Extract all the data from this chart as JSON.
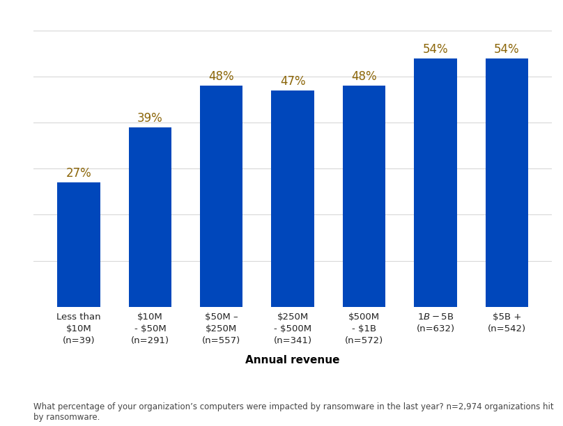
{
  "categories": [
    "Less than\n$10M\n(n=39)",
    "$10M\n- $50M\n(n=291)",
    "$50M –\n$250M\n(n=557)",
    "$250M\n- $500M\n(n=341)",
    "$500M\n- $1B\n(n=572)",
    "$1B - $5B\n(n=632)",
    "$5B +\n(n=542)"
  ],
  "values": [
    27,
    39,
    48,
    47,
    48,
    54,
    54
  ],
  "bar_color": "#0047BB",
  "label_color": "#8B6508",
  "label_fontsize": 12,
  "bar_width": 0.6,
  "ylim": [
    0,
    62
  ],
  "yticks": [
    0,
    10,
    20,
    30,
    40,
    50,
    60
  ],
  "xlabel": "Annual revenue",
  "xlabel_fontsize": 11,
  "xlabel_fontweight": "bold",
  "footnote": "What percentage of your organization’s computers were impacted by ransomware in the last year? n=2,974 organizations hit\nby ransomware.",
  "footnote_fontsize": 8.5,
  "footnote_color": "#444444",
  "grid_color": "#d8d8d8",
  "background_color": "#ffffff",
  "tick_label_fontsize": 9.5,
  "tick_label_color": "#222222"
}
